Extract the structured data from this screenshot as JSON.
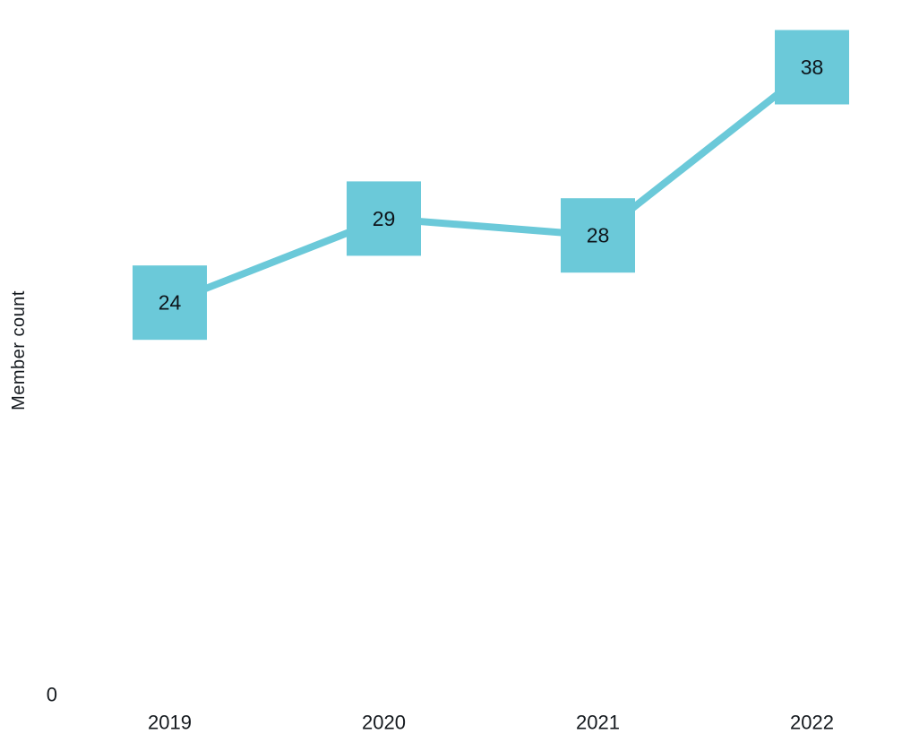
{
  "chart_data": {
    "type": "line",
    "categories": [
      "2019",
      "2020",
      "2021",
      "2022"
    ],
    "series": [
      {
        "name": "Member count",
        "values": [
          24,
          29,
          28,
          38
        ]
      }
    ],
    "data_labels": [
      "24",
      "29",
      "28",
      "38"
    ],
    "title": "",
    "xlabel": "",
    "ylabel": "Member count",
    "ylim": [
      0,
      42
    ],
    "y_ticks": [
      "0"
    ],
    "grid": false,
    "legend": false,
    "marker_shape": "square",
    "line_color": "#6BC9D9",
    "marker_color": "#6BC9D9",
    "label_color": "#0E151B",
    "axis_text_color": "#14191E",
    "background_color": "#FFFFFF"
  }
}
